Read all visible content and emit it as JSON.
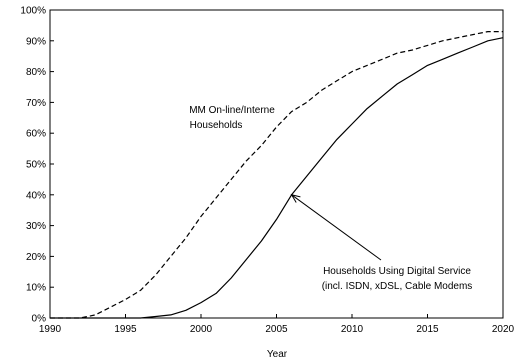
{
  "chart_data": {
    "type": "line",
    "title": "",
    "xlabel": "Year",
    "ylabel": "",
    "xlim": [
      1990,
      2020
    ],
    "ylim": [
      0,
      100
    ],
    "x_ticks": [
      1990,
      1995,
      2000,
      2005,
      2010,
      2015,
      2020
    ],
    "y_ticks": [
      0,
      10,
      20,
      30,
      40,
      50,
      60,
      70,
      80,
      90,
      100
    ],
    "y_tick_labels": [
      "0%",
      "10%",
      "20%",
      "30%",
      "40%",
      "50%",
      "60%",
      "70%",
      "80%",
      "90%",
      "100%"
    ],
    "grid": false,
    "series": [
      {
        "style": "dashed",
        "color": "#000000",
        "x": [
          1990,
          1991,
          1992,
          1993,
          1994,
          1995,
          1996,
          1997,
          1998,
          1999,
          2000,
          2001,
          2002,
          2003,
          2004,
          2005,
          2006,
          2007,
          2008,
          2009,
          2010,
          2011,
          2012,
          2013,
          2014,
          2015,
          2016,
          2017,
          2018,
          2019,
          2020
        ],
        "y": [
          0,
          0,
          0,
          1,
          3.5,
          6,
          9,
          14,
          20,
          26,
          33,
          39,
          45,
          51,
          56,
          62,
          67,
          70,
          74,
          77,
          80,
          82,
          84,
          86,
          87,
          88.5,
          90,
          91,
          92,
          93,
          93
        ]
      },
      {
        "style": "solid",
        "color": "#000000",
        "x": [
          1990,
          1991,
          1992,
          1993,
          1994,
          1995,
          1996,
          1997,
          1998,
          1999,
          2000,
          2001,
          2002,
          2003,
          2004,
          2005,
          2006,
          2007,
          2008,
          2009,
          2010,
          2011,
          2012,
          2013,
          2014,
          2015,
          2016,
          2017,
          2018,
          2019,
          2020
        ],
        "y": [
          0,
          0,
          0,
          0,
          0,
          0,
          0,
          0.5,
          1,
          2.5,
          5,
          8,
          13,
          19,
          25,
          32,
          40,
          46,
          52,
          58,
          63,
          68,
          72,
          76,
          79,
          82,
          84,
          86,
          88,
          90,
          91
        ]
      }
    ],
    "annotations": [
      {
        "lines": [
          "MM On-line/Interne",
          "Households"
        ]
      },
      {
        "lines": [
          "Households Using Digital Service",
          "(incl. ISDN, xDSL, Cable Modems"
        ]
      }
    ]
  }
}
